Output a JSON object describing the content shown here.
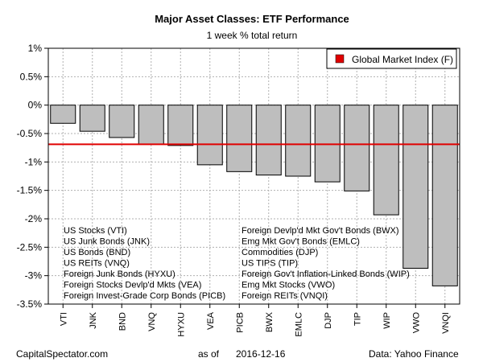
{
  "chart_data": {
    "type": "bar",
    "title": "Major Asset Classes: ETF Performance",
    "subtitle": "1 week % total return",
    "categories": [
      "VTI",
      "JNK",
      "BND",
      "VNQ",
      "HYXU",
      "VEA",
      "PICB",
      "BWX",
      "EMLC",
      "DJP",
      "TIP",
      "WIP",
      "VWO",
      "VNQI"
    ],
    "values": [
      -0.32,
      -0.46,
      -0.57,
      -0.69,
      -0.71,
      -1.05,
      -1.17,
      -1.23,
      -1.25,
      -1.35,
      -1.51,
      -1.93,
      -2.87,
      -3.18
    ],
    "ylim": [
      -3.5,
      1
    ],
    "yticks": [
      1,
      0.5,
      0,
      -0.5,
      -1,
      -1.5,
      -2,
      -2.5,
      -3,
      -3.5
    ],
    "ytick_labels": [
      "1%",
      "0.5%",
      "0%",
      "-0.5%",
      "-1%",
      "-1.5%",
      "-2%",
      "-2.5%",
      "-3%",
      "-3.5%"
    ],
    "grid": true,
    "bar_color": "#bebebe",
    "reference_line": {
      "name": "Global Market Index (F)",
      "value": -0.69,
      "color": "#e00000"
    },
    "legend": {
      "placement": "top-right",
      "entries": [
        "Global Market Index (F)"
      ]
    },
    "notes_left": [
      "US Stocks (VTI)",
      "US Junk Bonds (JNK)",
      "US Bonds (BND)",
      "US REITs (VNQ)",
      "Foreign Junk Bonds (HYXU)",
      "Foreign Stocks Devlp'd Mkts (VEA)",
      "Foreign Invest-Grade Corp Bonds (PICB)"
    ],
    "notes_right": [
      "Foreign Devlp'd Mkt Gov't Bonds (BWX)",
      "Emg Mkt Gov't Bonds (EMLC)",
      "Commodities (DJP)",
      "US TIPS (TIP)",
      "Foreign Gov't Inflation-Linked Bonds (WIP)",
      "Emg Mkt Stocks (VWO)",
      "Foreign REITs (VNQI)"
    ]
  },
  "footer": {
    "source_left": "CapitalSpectator.com",
    "as_of_label": "as of",
    "date": "2016-12-16",
    "source_right": "Data: Yahoo Finance"
  }
}
